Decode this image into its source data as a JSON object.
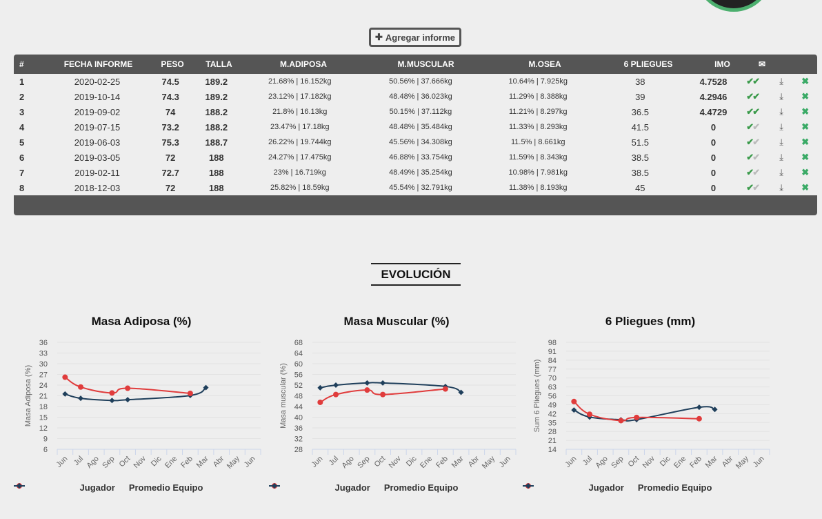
{
  "toolbar": {
    "add_label": "Agregar informe",
    "add_icon": "plus-icon"
  },
  "table": {
    "headers": [
      "#",
      "FECHA INFORME",
      "PESO",
      "TALLA",
      "M.ADIPOSA",
      "M.MUSCULAR",
      "M.OSEA",
      "6 PLIEGUES",
      "IMO"
    ],
    "header_icon": "envelope-icon",
    "rows": [
      [
        "1",
        "2020-02-25",
        "74.5",
        "189.2",
        "21.68% | 16.152kg",
        "50.56% | 37.666kg",
        "10.64% | 7.925kg",
        "38",
        "4.7528",
        true
      ],
      [
        "2",
        "2019-10-14",
        "74.3",
        "189.2",
        "23.12% | 17.182kg",
        "48.48% | 36.023kg",
        "11.29% | 8.388kg",
        "39",
        "4.2946",
        true
      ],
      [
        "3",
        "2019-09-02",
        "74",
        "188.2",
        "21.8% | 16.13kg",
        "50.15% | 37.112kg",
        "11.21% | 8.297kg",
        "36.5",
        "4.4729",
        true
      ],
      [
        "4",
        "2019-07-15",
        "73.2",
        "188.2",
        "23.47% | 17.18kg",
        "48.48% | 35.484kg",
        "11.33% | 8.293kg",
        "41.5",
        "0",
        false
      ],
      [
        "5",
        "2019-06-03",
        "75.3",
        "188.7",
        "26.22% | 19.744kg",
        "45.56% | 34.308kg",
        "11.5% | 8.661kg",
        "51.5",
        "0",
        false
      ],
      [
        "6",
        "2019-03-05",
        "72",
        "188",
        "24.27% | 17.475kg",
        "46.88% | 33.754kg",
        "11.59% | 8.343kg",
        "38.5",
        "0",
        false
      ],
      [
        "7",
        "2019-02-11",
        "72.7",
        "188",
        "23% | 16.719kg",
        "48.49% | 35.254kg",
        "10.98% | 7.981kg",
        "38.5",
        "0",
        false
      ],
      [
        "8",
        "2018-12-03",
        "72",
        "188",
        "25.82% | 18.59kg",
        "45.54% | 32.791kg",
        "11.38% | 8.193kg",
        "45",
        "0",
        false
      ]
    ]
  },
  "section_title": "EVOLUCIÓN",
  "colors": {
    "jugador": "#e03c3c",
    "promedio": "#1f3f5b",
    "header": "#555555",
    "accent": "#3aaa66"
  },
  "chart_data": [
    {
      "type": "line",
      "title": "Masa Adiposa (%)",
      "ylabel": "Masa Adiposa (%)",
      "ylim": [
        6,
        36
      ],
      "yticks": [
        6,
        9,
        12,
        15,
        18,
        21,
        24,
        27,
        30,
        33,
        36
      ],
      "categories": [
        "Jun",
        "Jul",
        "Ago",
        "Sep",
        "Oct",
        "Nov",
        "Dic",
        "Ene",
        "Feb",
        "Mar",
        "Abr",
        "May",
        "Jun"
      ],
      "legend": "bottom",
      "grid": true,
      "series": [
        {
          "name": "Jugador",
          "x": [
            "Jun",
            "Jul",
            "Sep",
            "Oct",
            "Feb"
          ],
          "values": [
            26.22,
            23.47,
            21.8,
            23.12,
            21.68
          ]
        },
        {
          "name": "Promedio Equipo",
          "x": [
            "Jun",
            "Jul",
            "Sep",
            "Oct",
            "Feb",
            "Mar"
          ],
          "values": [
            21.5,
            20.3,
            19.7,
            19.9,
            21.1,
            23.3
          ]
        }
      ]
    },
    {
      "type": "line",
      "title": "Masa Muscular (%)",
      "ylabel": "Masa muscular (%)",
      "ylim": [
        28,
        68
      ],
      "yticks": [
        28,
        32,
        36,
        40,
        44,
        48,
        52,
        56,
        60,
        64,
        68
      ],
      "categories": [
        "Jun",
        "Jul",
        "Ago",
        "Sep",
        "Oct",
        "Nov",
        "Dic",
        "Ene",
        "Feb",
        "Mar",
        "Abr",
        "May",
        "Jun"
      ],
      "legend": "bottom",
      "grid": true,
      "series": [
        {
          "name": "Jugador",
          "x": [
            "Jun",
            "Jul",
            "Sep",
            "Oct",
            "Feb"
          ],
          "values": [
            45.56,
            48.48,
            50.15,
            48.48,
            50.56
          ]
        },
        {
          "name": "Promedio Equipo",
          "x": [
            "Jun",
            "Jul",
            "Sep",
            "Oct",
            "Feb",
            "Mar"
          ],
          "values": [
            51,
            52,
            52.8,
            52.8,
            51.5,
            49.3
          ]
        }
      ]
    },
    {
      "type": "line",
      "title": "6 Pliegues (mm)",
      "ylabel": "Sum 6 Pliegues (mm)",
      "ylim": [
        14,
        98
      ],
      "yticks": [
        14,
        21,
        28,
        35,
        42,
        49,
        56,
        63,
        70,
        77,
        84,
        91,
        98
      ],
      "categories": [
        "Jun",
        "Jul",
        "Ago",
        "Sep",
        "Oct",
        "Nov",
        "Dic",
        "Ene",
        "Feb",
        "Mar",
        "Abr",
        "May",
        "Jun"
      ],
      "legend": "bottom",
      "grid": true,
      "series": [
        {
          "name": "Jugador",
          "x": [
            "Jun",
            "Jul",
            "Sep",
            "Oct",
            "Feb"
          ],
          "values": [
            51.5,
            41.5,
            36.5,
            39,
            38
          ]
        },
        {
          "name": "Promedio Equipo",
          "x": [
            "Jun",
            "Jul",
            "Sep",
            "Oct",
            "Feb",
            "Mar"
          ],
          "values": [
            44.8,
            39.3,
            37.2,
            37.3,
            47,
            45.3
          ]
        }
      ]
    }
  ]
}
